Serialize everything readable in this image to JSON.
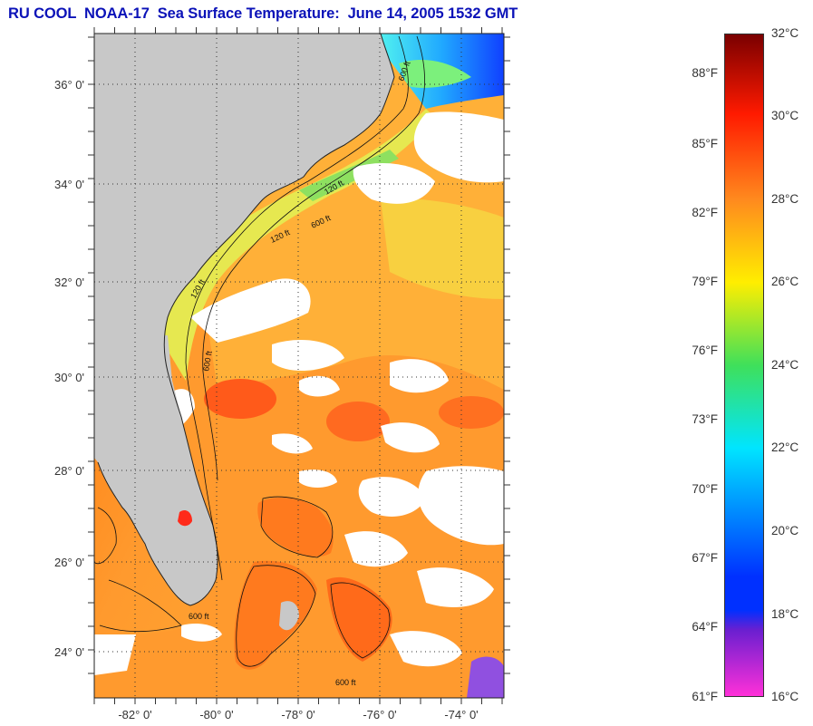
{
  "title": "RU COOL  NOAA-17  Sea Surface Temperature:  June 14, 2005 1532 GMT",
  "lat_labels": [
    "36° 0'",
    "34° 0'",
    "32° 0'",
    "30° 0'",
    "28° 0'",
    "26° 0'",
    "24° 0'"
  ],
  "lon_labels": [
    "-82° 0'",
    "-80° 0'",
    "-78° 0'",
    "-76° 0'",
    "-74° 0'"
  ],
  "isobath_labels": [
    "120 ft",
    "600 ft",
    "120 ft",
    "600 ft",
    "120 ft",
    "600 ft",
    "600 ft",
    "600 ft"
  ],
  "colorbar": {
    "celsius": [
      "32°C",
      "30°C",
      "28°C",
      "26°C",
      "24°C",
      "22°C",
      "20°C",
      "18°C",
      "16°C"
    ],
    "fahrenheit": [
      "88°F",
      "85°F",
      "82°F",
      "79°F",
      "76°F",
      "73°F",
      "70°F",
      "67°F",
      "64°F",
      "61°F"
    ],
    "colors": {
      "dark_red": "#7a0000",
      "red": "#ff1a00",
      "orange": "#ff8a1e",
      "yellow": "#ffee00",
      "green": "#3fe05a",
      "cyan": "#00e5ff",
      "blue": "#0030ff",
      "purple": "#6a1fd0",
      "magenta": "#ff30d8"
    }
  },
  "colors": {
    "land": "#c8c8c8",
    "cloud": "#ffffff",
    "warm_sea": "#ff9a2e",
    "hot_sea": "#ff5a1a",
    "shelf": "#f0e050",
    "cool_sea": "#30c8ff"
  }
}
